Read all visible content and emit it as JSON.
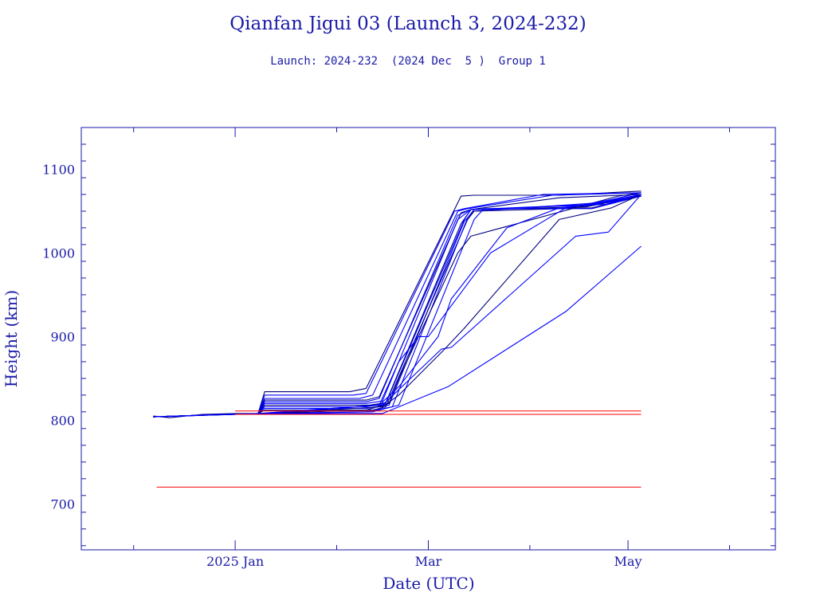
{
  "chart_data": {
    "type": "line",
    "title": "Qianfan Jigui 03 (Launch 3, 2024-232)",
    "subtitle": "Launch: 2024-232  (2024 Dec  5 )  Group 1",
    "xlabel": "Date (UTC)",
    "ylabel": "Height (km)",
    "x_ticks": [
      "2025 Jan",
      "Mar",
      "May"
    ],
    "x_tick_dates": [
      "2025-01-01",
      "2025-03-01",
      "2025-05-01"
    ],
    "xlim": [
      "2024-11-15",
      "2025-06-15"
    ],
    "ylim": [
      645,
      1150
    ],
    "y_ticks": [
      700,
      800,
      900,
      1000,
      1100
    ],
    "grid": false,
    "colors": {
      "axes": "#1a1aa8",
      "series": "#0000ff",
      "series_dark": "#000080",
      "reference": "#ff0000"
    },
    "reference_lines": [
      {
        "y": 811,
        "x_start": "2025-01-01",
        "x_end": "2025-05-05"
      },
      {
        "y": 807,
        "x_start": "2025-01-01",
        "x_end": "2025-05-05"
      },
      {
        "y": 720,
        "x_start": "2024-12-08",
        "x_end": "2025-05-05"
      }
    ],
    "series": [
      {
        "x": [
          "2024-12-07",
          "2024-12-12",
          "2024-12-22",
          "2025-01-01",
          "2025-01-08",
          "2025-01-10",
          "2025-02-05",
          "2025-02-10",
          "2025-03-11",
          "2025-03-15",
          "2025-04-10",
          "2025-05-05"
        ],
        "y": [
          805,
          803,
          807,
          808,
          808,
          834,
          834,
          838,
          1068,
          1069,
          1069,
          1074
        ]
      },
      {
        "x": [
          "2024-12-07",
          "2024-12-22",
          "2025-01-08",
          "2025-01-10",
          "2025-02-06",
          "2025-02-10",
          "2025-03-09",
          "2025-03-12",
          "2025-04-05",
          "2025-05-05"
        ],
        "y": [
          804,
          806,
          808,
          830,
          830,
          832,
          1050,
          1053,
          1070,
          1072
        ]
      },
      {
        "x": [
          "2024-12-07",
          "2024-12-22",
          "2025-01-08",
          "2025-01-10",
          "2025-02-08",
          "2025-02-12",
          "2025-03-10",
          "2025-03-13",
          "2025-04-08",
          "2025-05-05"
        ],
        "y": [
          804,
          806,
          808,
          826,
          826,
          830,
          1050,
          1053,
          1069,
          1072
        ]
      },
      {
        "x": [
          "2024-12-07",
          "2024-12-22",
          "2025-01-08",
          "2025-01-10",
          "2025-02-10",
          "2025-02-14",
          "2025-03-11",
          "2025-03-14",
          "2025-04-10",
          "2025-05-05"
        ],
        "y": [
          804,
          806,
          808,
          824,
          824,
          828,
          1048,
          1052,
          1066,
          1070
        ]
      },
      {
        "x": [
          "2024-12-07",
          "2024-12-22",
          "2025-01-08",
          "2025-01-10",
          "2025-02-10",
          "2025-02-14",
          "2025-03-10",
          "2025-03-14",
          "2025-04-12",
          "2025-05-05"
        ],
        "y": [
          804,
          806,
          808,
          822,
          822,
          826,
          1045,
          1052,
          1054,
          1068
        ]
      },
      {
        "x": [
          "2024-12-07",
          "2024-12-22",
          "2025-01-08",
          "2025-01-10",
          "2025-02-10",
          "2025-02-15",
          "2025-03-10",
          "2025-03-14",
          "2025-04-15",
          "2025-05-05"
        ],
        "y": [
          804,
          806,
          808,
          820,
          820,
          823,
          1040,
          1052,
          1054,
          1068
        ]
      },
      {
        "x": [
          "2024-12-07",
          "2024-12-22",
          "2025-01-08",
          "2025-01-10",
          "2025-02-11",
          "2025-02-16",
          "2025-03-11",
          "2025-03-14",
          "2025-04-18",
          "2025-05-05"
        ],
        "y": [
          804,
          806,
          808,
          818,
          818,
          821,
          1035,
          1052,
          1055,
          1068
        ]
      },
      {
        "x": [
          "2024-12-07",
          "2024-12-22",
          "2025-01-08",
          "2025-01-10",
          "2025-02-10",
          "2025-02-16",
          "2025-03-12",
          "2025-03-14",
          "2025-04-20",
          "2025-05-05"
        ],
        "y": [
          804,
          806,
          808,
          816,
          816,
          820,
          1040,
          1052,
          1058,
          1070
        ]
      },
      {
        "x": [
          "2024-12-07",
          "2024-12-22",
          "2025-01-08",
          "2025-01-10",
          "2025-02-10",
          "2025-02-17",
          "2025-03-12",
          "2025-03-15",
          "2025-04-22",
          "2025-05-05"
        ],
        "y": [
          804,
          806,
          808,
          814,
          814,
          818,
          1038,
          1050,
          1060,
          1070
        ]
      },
      {
        "x": [
          "2024-12-07",
          "2024-12-22",
          "2025-01-08",
          "2025-01-10",
          "2025-02-12",
          "2025-02-16",
          "2025-03-13",
          "2025-03-15",
          "2025-04-20",
          "2025-05-05"
        ],
        "y": [
          804,
          806,
          808,
          812,
          812,
          816,
          1040,
          1050,
          1054,
          1068
        ]
      },
      {
        "x": [
          "2024-12-07",
          "2024-12-22",
          "2025-01-08",
          "2025-02-10",
          "2025-02-18",
          "2025-03-13",
          "2025-03-15",
          "2025-04-24",
          "2025-05-05"
        ],
        "y": [
          804,
          806,
          808,
          810,
          816,
          1042,
          1052,
          1058,
          1070
        ]
      },
      {
        "x": [
          "2024-12-07",
          "2024-12-22",
          "2025-01-10",
          "2025-02-12",
          "2025-02-20",
          "2025-03-15",
          "2025-03-18",
          "2025-04-20",
          "2025-05-05"
        ],
        "y": [
          804,
          806,
          808,
          810,
          818,
          1040,
          1053,
          1053,
          1068
        ]
      },
      {
        "x": [
          "2024-12-07",
          "2025-01-08",
          "2025-02-10",
          "2025-02-17",
          "2025-02-20",
          "2025-02-26",
          "2025-03-10",
          "2025-03-14",
          "2025-04-28",
          "2025-05-05"
        ],
        "y": [
          804,
          808,
          812,
          820,
          850,
          900,
          1000,
          1020,
          1068,
          1072
        ]
      },
      {
        "x": [
          "2024-12-07",
          "2025-01-08",
          "2025-02-14",
          "2025-02-20",
          "2025-02-26",
          "2025-03-01",
          "2025-03-20",
          "2025-04-12",
          "2025-04-26",
          "2025-05-05"
        ],
        "y": [
          804,
          808,
          818,
          870,
          900,
          900,
          1000,
          1054,
          1064,
          1072
        ]
      },
      {
        "x": [
          "2024-12-07",
          "2025-01-08",
          "2025-02-14",
          "2025-02-20",
          "2025-03-04",
          "2025-03-08",
          "2025-03-25",
          "2025-04-10",
          "2025-04-28",
          "2025-05-05"
        ],
        "y": [
          804,
          808,
          818,
          840,
          900,
          945,
          1030,
          1054,
          1062,
          1070
        ]
      },
      {
        "x": [
          "2024-12-07",
          "2025-01-10",
          "2025-02-15",
          "2025-02-20",
          "2025-03-06",
          "2025-03-12",
          "2025-04-10",
          "2025-04-26",
          "2025-05-05"
        ],
        "y": [
          804,
          808,
          816,
          830,
          885,
          910,
          1040,
          1054,
          1070
        ]
      },
      {
        "x": [
          "2024-12-07",
          "2025-01-10",
          "2025-02-15",
          "2025-03-05",
          "2025-03-08",
          "2025-04-15",
          "2025-04-25",
          "2025-05-05"
        ],
        "y": [
          804,
          808,
          818,
          885,
          887,
          1020,
          1025,
          1070
        ]
      },
      {
        "x": [
          "2024-12-07",
          "2025-01-10",
          "2025-02-15",
          "2025-03-07",
          "2025-04-12",
          "2025-05-05"
        ],
        "y": [
          804,
          808,
          808,
          840,
          930,
          1008
        ]
      }
    ]
  }
}
